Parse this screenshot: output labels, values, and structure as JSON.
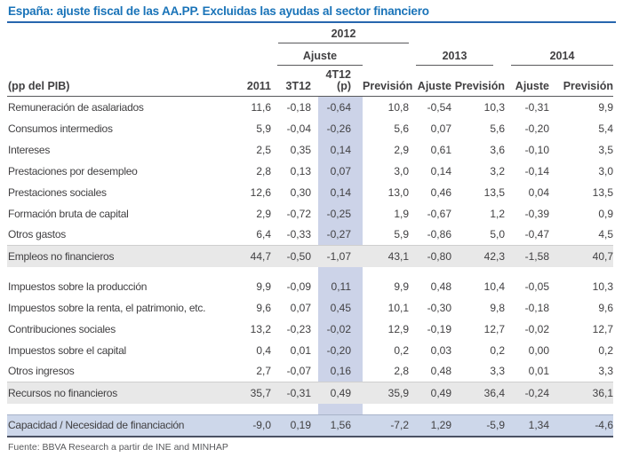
{
  "title": "España: ajuste fiscal de las AA.PP. Excluidas las ayudas al sector financiero",
  "source": "Fuente: BBVA Research a partir de INE and MINHAP",
  "colors": {
    "title_color": "#1973b8",
    "rule_top": "#2766ae",
    "rule_bottom": "#4a5264",
    "thin_rule": "#58595b",
    "text": "#414042",
    "source_text": "#58595b",
    "col_highlight": "#ccd3e8",
    "total_band": "#e8e8e8",
    "balance_band": "#cdd7ea"
  },
  "header": {
    "group_2012": "2012",
    "group_ajuste": "Ajuste",
    "group_2013": "2013",
    "group_2014": "2014",
    "columns": [
      "(pp del PIB)",
      "2011",
      "3T12",
      "4T12\n(p)",
      "Previsión",
      "Ajuste",
      "Previsión",
      "Ajuste",
      "Previsión"
    ]
  },
  "table": {
    "rows": [
      {
        "type": "data",
        "label": "Remuneración de asalariados",
        "values": [
          "11,6",
          "-0,18",
          "-0,64",
          "10,8",
          "-0,54",
          "10,3",
          "-0,31",
          "9,9"
        ]
      },
      {
        "type": "data",
        "label": "Consumos intermedios",
        "values": [
          "5,9",
          "-0,04",
          "-0,26",
          "5,6",
          "0,07",
          "5,6",
          "-0,20",
          "5,4"
        ]
      },
      {
        "type": "data",
        "label": "Intereses",
        "values": [
          "2,5",
          "0,35",
          "0,14",
          "2,9",
          "0,61",
          "3,6",
          "-0,10",
          "3,5"
        ]
      },
      {
        "type": "data",
        "label": "Prestaciones por desempleo",
        "values": [
          "2,8",
          "0,13",
          "0,07",
          "3,0",
          "0,14",
          "3,2",
          "-0,14",
          "3,0"
        ]
      },
      {
        "type": "data",
        "label": "Prestaciones sociales",
        "values": [
          "12,6",
          "0,30",
          "0,14",
          "13,0",
          "0,46",
          "13,5",
          "0,04",
          "13,5"
        ]
      },
      {
        "type": "data",
        "label": "Formación bruta de capital",
        "values": [
          "2,9",
          "-0,72",
          "-0,25",
          "1,9",
          "-0,67",
          "1,2",
          "-0,39",
          "0,9"
        ]
      },
      {
        "type": "data",
        "label": "Otros gastos",
        "values": [
          "6,4",
          "-0,33",
          "-0,27",
          "5,9",
          "-0,86",
          "5,0",
          "-0,47",
          "4,5"
        ]
      },
      {
        "type": "total",
        "label": "Empleos no financieros",
        "values": [
          "44,7",
          "-0,50",
          "-1,07",
          "43,1",
          "-0,80",
          "42,3",
          "-1,58",
          "40,7"
        ]
      },
      {
        "type": "spacer",
        "height": 10
      },
      {
        "type": "data",
        "label": "Impuestos sobre la producción",
        "values": [
          "9,9",
          "-0,09",
          "0,11",
          "9,9",
          "0,48",
          "10,4",
          "-0,05",
          "10,3"
        ]
      },
      {
        "type": "data",
        "label": "Impuestos sobre la renta, el patrimonio, etc.",
        "values": [
          "9,6",
          "0,07",
          "0,45",
          "10,1",
          "-0,30",
          "9,8",
          "-0,18",
          "9,6"
        ]
      },
      {
        "type": "data",
        "label": "Contribuciones sociales",
        "values": [
          "13,2",
          "-0,23",
          "-0,02",
          "12,9",
          "-0,19",
          "12,7",
          "-0,02",
          "12,7"
        ]
      },
      {
        "type": "data",
        "label": "Impuestos sobre el capital",
        "values": [
          "0,4",
          "0,01",
          "-0,20",
          "0,2",
          "0,03",
          "0,2",
          "0,00",
          "0,2"
        ]
      },
      {
        "type": "data",
        "label": "Otros ingresos",
        "values": [
          "2,7",
          "-0,07",
          "0,16",
          "2,8",
          "0,48",
          "3,3",
          "0,01",
          "3,3"
        ]
      },
      {
        "type": "total",
        "label": "Recursos no financieros",
        "values": [
          "35,7",
          "-0,31",
          "0,49",
          "35,9",
          "0,49",
          "36,4",
          "-0,24",
          "36,1"
        ]
      },
      {
        "type": "spacer",
        "height": 13
      },
      {
        "type": "balance",
        "label": "Capacidad / Necesidad de financiación",
        "values": [
          "-9,0",
          "0,19",
          "1,56",
          "-7,2",
          "1,29",
          "-5,9",
          "1,34",
          "-4,6"
        ]
      }
    ]
  }
}
